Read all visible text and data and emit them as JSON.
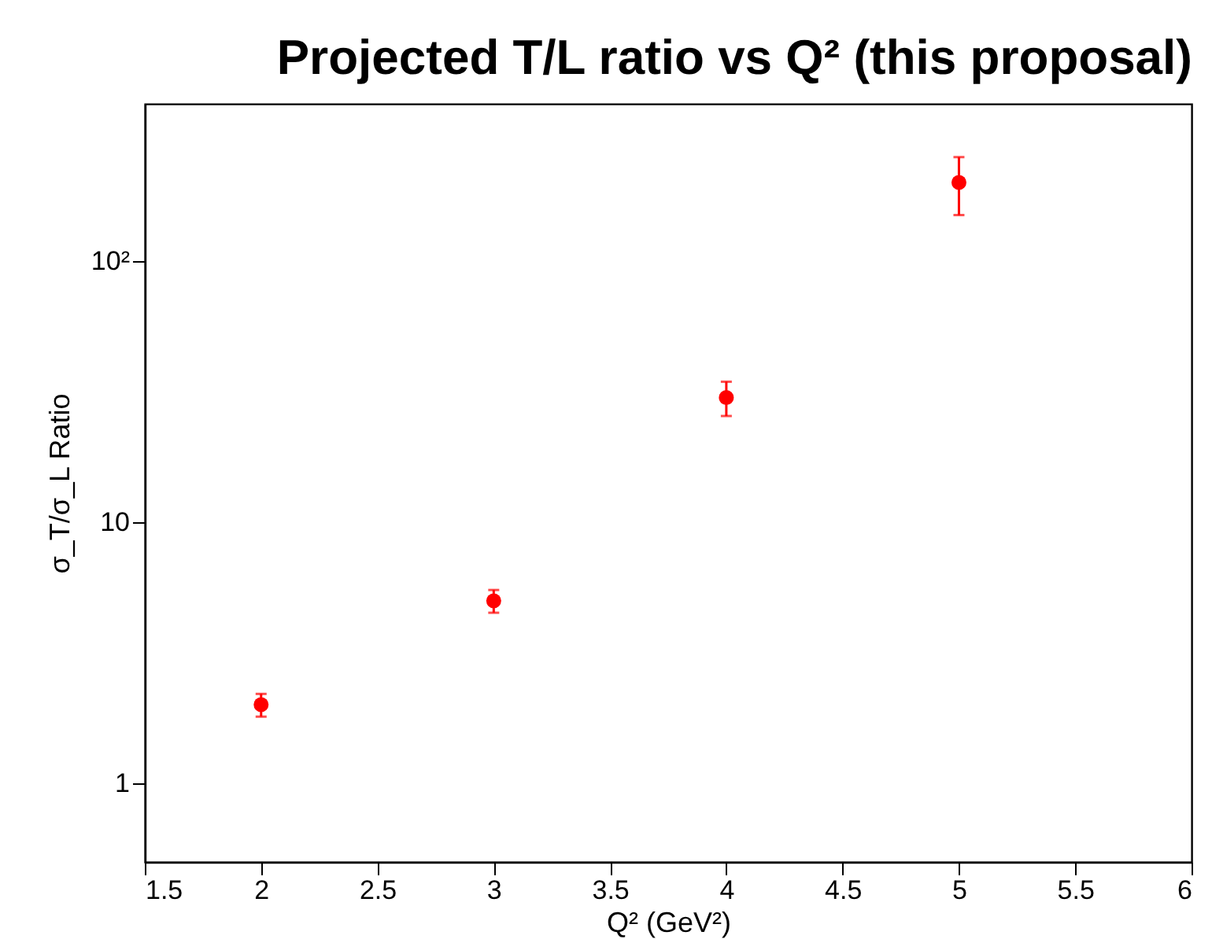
{
  "chart_data": {
    "type": "scatter",
    "title": "Projected T/L ratio vs Q² (this proposal)",
    "xlabel": "Q² (GeV²)",
    "ylabel": "σ_T/σ_L Ratio",
    "x": [
      2,
      3,
      4,
      5
    ],
    "series": [
      {
        "color": "#ff0000",
        "values": [
          2,
          5,
          30,
          200
        ],
        "errors": [
          0.2,
          0.5,
          4.5,
          50
        ]
      }
    ],
    "log": "y",
    "xlim": [
      1.5,
      6
    ],
    "xticks": [
      1.5,
      2,
      2.5,
      3,
      3.5,
      4,
      4.5,
      5,
      5.5,
      6
    ],
    "ylim": [
      0.5,
      400
    ],
    "yticks": [
      1,
      10,
      {
        "value": 100,
        "label": "10²"
      }
    ],
    "grid": false,
    "marker": "circle"
  }
}
